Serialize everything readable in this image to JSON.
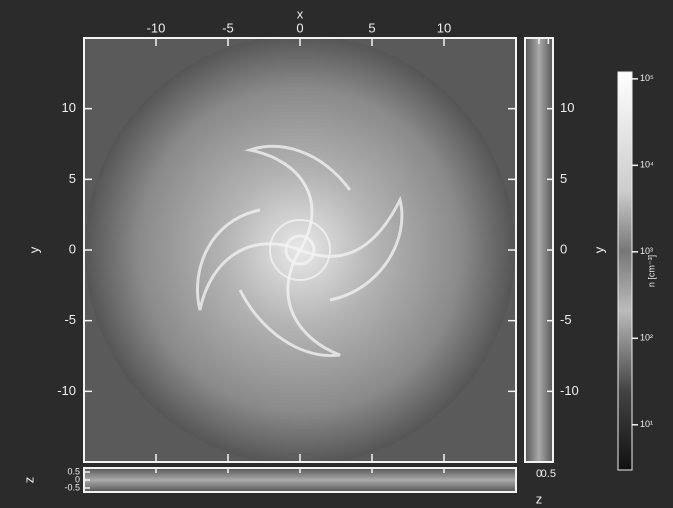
{
  "chart_data": {
    "type": "image",
    "xlabel": "x",
    "ylabel": "y",
    "xlim": [
      -15,
      15
    ],
    "ylim": [
      -15,
      15
    ],
    "xticks": [
      -10,
      -5,
      0,
      5,
      10
    ],
    "yticks": [
      -10,
      -5,
      0,
      5,
      10
    ],
    "side_panel": {
      "xlabel": "z",
      "ylabel": "y",
      "zlim": [
        -0.75,
        0.75
      ],
      "zticks": [
        0,
        0.5
      ]
    },
    "bottom_panel": {
      "ylabel": "z",
      "zlim": [
        -0.75,
        0.75
      ],
      "zticks": [
        -0.5,
        0,
        0.5
      ]
    },
    "colorbar": {
      "label": "n [cm⁻³]",
      "log": true,
      "clim": [
        3,
        120000
      ],
      "ticks": [
        {
          "value": 100000,
          "label": "10⁵"
        },
        {
          "value": 10000,
          "label": "10⁴"
        },
        {
          "value": 1000,
          "label": "10³"
        },
        {
          "value": 100,
          "label": "10²"
        },
        {
          "value": 10,
          "label": "10¹"
        }
      ]
    }
  }
}
